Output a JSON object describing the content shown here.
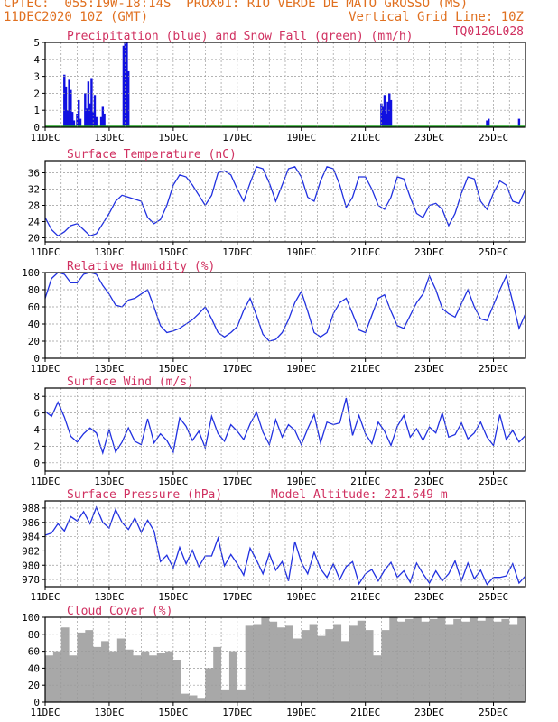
{
  "header": {
    "line1_left": "CPTEC:  055:19W-18:14S  PROX01: RIO VERDE DE MATO GROSSO (MS)",
    "line2_left": "11DEC2020 10Z (GMT)",
    "line2_right": "Vertical Grid Line: 10Z",
    "line3_right": "TQ0126L028"
  },
  "colors": {
    "header": "#e07020",
    "title": "#d03060",
    "precip": "#1010e0",
    "snow": "#20a020",
    "line": "#2030e0",
    "cloud": "#a8a8a8",
    "grid": "#9a9a9a"
  },
  "x_axis": {
    "ticks": [
      "11DEC",
      "13DEC",
      "15DEC",
      "17DEC",
      "19DEC",
      "21DEC",
      "23DEC",
      "25DEC"
    ],
    "range_days": [
      0,
      15
    ]
  },
  "chart_data": [
    {
      "type": "bar",
      "title": "Precipitation (blue) and Snow Fall (green) (mm/h)",
      "ylim": [
        0,
        5
      ],
      "yticks": [
        "0",
        "1",
        "2",
        "3",
        "4",
        "5"
      ],
      "bars": [
        [
          0.6,
          3.1
        ],
        [
          0.65,
          2.4
        ],
        [
          0.7,
          1.0
        ],
        [
          0.75,
          2.8
        ],
        [
          0.8,
          2.2
        ],
        [
          0.85,
          0.9
        ],
        [
          0.9,
          0.4
        ],
        [
          1.0,
          0.8
        ],
        [
          1.05,
          1.6
        ],
        [
          1.1,
          0.5
        ],
        [
          1.25,
          2.0
        ],
        [
          1.3,
          1.1
        ],
        [
          1.35,
          2.7
        ],
        [
          1.4,
          1.4
        ],
        [
          1.45,
          2.9
        ],
        [
          1.5,
          0.9
        ],
        [
          1.55,
          1.9
        ],
        [
          1.6,
          0.6
        ],
        [
          1.75,
          0.6
        ],
        [
          1.8,
          1.2
        ],
        [
          1.85,
          0.8
        ],
        [
          2.45,
          4.8
        ],
        [
          2.5,
          5.0
        ],
        [
          2.55,
          5.0
        ],
        [
          2.6,
          3.3
        ],
        [
          10.5,
          1.4
        ],
        [
          10.55,
          1.2
        ],
        [
          10.6,
          1.9
        ],
        [
          10.65,
          0.8
        ],
        [
          10.7,
          1.5
        ],
        [
          10.75,
          2.0
        ],
        [
          10.8,
          1.6
        ],
        [
          13.8,
          0.4
        ],
        [
          13.85,
          0.5
        ],
        [
          14.8,
          0.5
        ]
      ],
      "snow_line": 0.05
    },
    {
      "type": "line",
      "title": "Surface Temperature (nC)",
      "ylim": [
        19,
        39
      ],
      "yticks": [
        "20",
        "24",
        "28",
        "32",
        "36"
      ],
      "x": [
        0,
        0.2,
        0.4,
        0.6,
        0.8,
        1.0,
        1.2,
        1.4,
        1.6,
        1.8,
        2.0,
        2.2,
        2.4,
        2.6,
        2.8,
        3.0,
        3.2,
        3.4,
        3.6,
        3.8,
        4.0,
        4.2,
        4.4,
        4.6,
        4.8,
        5.0,
        5.2,
        5.4,
        5.6,
        5.8,
        6.0,
        6.2,
        6.4,
        6.6,
        6.8,
        7.0,
        7.2,
        7.4,
        7.6,
        7.8,
        8.0,
        8.2,
        8.4,
        8.6,
        8.8,
        9.0,
        9.2,
        9.4,
        9.6,
        9.8,
        10.0,
        10.2,
        10.4,
        10.6,
        10.8,
        11.0,
        11.2,
        11.4,
        11.6,
        11.8,
        12.0,
        12.2,
        12.4,
        12.6,
        12.8,
        13.0,
        13.2,
        13.4,
        13.6,
        13.8,
        14.0,
        14.2,
        14.4,
        14.6,
        14.8,
        15.0
      ],
      "y": [
        25,
        22,
        20.5,
        21.5,
        23,
        23.5,
        22,
        20.5,
        21,
        23.5,
        26,
        29,
        30.5,
        30,
        29.5,
        29,
        25,
        23.5,
        24.5,
        28,
        33,
        35.5,
        35,
        33,
        30.5,
        28,
        30.5,
        36,
        36.5,
        35.5,
        32,
        29,
        33.5,
        37.5,
        37,
        33.5,
        29,
        33,
        37,
        37.5,
        35,
        30,
        29,
        34,
        37.5,
        37,
        33,
        27.5,
        30,
        35,
        35,
        32,
        28,
        27,
        30,
        35,
        34.5,
        30,
        26,
        25,
        28,
        28.5,
        27,
        23,
        26,
        31,
        35,
        34.5,
        29,
        27,
        31,
        34,
        33,
        29,
        28.5,
        32
      ]
    },
    {
      "type": "line",
      "title": "Relative Humidity (%)",
      "ylim": [
        0,
        100
      ],
      "yticks": [
        "0",
        "20",
        "40",
        "60",
        "80",
        "100"
      ],
      "x": [
        0,
        0.2,
        0.4,
        0.6,
        0.8,
        1.0,
        1.2,
        1.4,
        1.6,
        1.8,
        2.0,
        2.2,
        2.4,
        2.6,
        2.8,
        3.0,
        3.2,
        3.4,
        3.6,
        3.8,
        4.0,
        4.2,
        4.4,
        4.6,
        4.8,
        5.0,
        5.2,
        5.4,
        5.6,
        5.8,
        6.0,
        6.2,
        6.4,
        6.6,
        6.8,
        7.0,
        7.2,
        7.4,
        7.6,
        7.8,
        8.0,
        8.2,
        8.4,
        8.6,
        8.8,
        9.0,
        9.2,
        9.4,
        9.6,
        9.8,
        10.0,
        10.2,
        10.4,
        10.6,
        10.8,
        11.0,
        11.2,
        11.4,
        11.6,
        11.8,
        12.0,
        12.2,
        12.4,
        12.6,
        12.8,
        13.0,
        13.2,
        13.4,
        13.6,
        13.8,
        14.0,
        14.2,
        14.4,
        14.6,
        14.8,
        15.0
      ],
      "y": [
        70,
        93,
        100,
        98,
        88,
        88,
        98,
        100,
        98,
        85,
        75,
        62,
        60,
        68,
        70,
        75,
        80,
        60,
        38,
        30,
        32,
        35,
        40,
        45,
        52,
        60,
        46,
        30,
        25,
        30,
        37,
        56,
        70,
        50,
        28,
        20,
        22,
        30,
        45,
        65,
        78,
        55,
        30,
        25,
        30,
        52,
        65,
        70,
        52,
        33,
        30,
        50,
        70,
        74,
        55,
        38,
        35,
        50,
        65,
        75,
        96,
        80,
        58,
        52,
        48,
        64,
        80,
        60,
        46,
        44,
        62,
        80,
        96,
        66,
        35,
        52
      ]
    },
    {
      "type": "line",
      "title": "Surface Wind (m/s)",
      "ylim": [
        -1,
        9
      ],
      "yticks": [
        "0",
        "2",
        "4",
        "6",
        "8"
      ],
      "x": [
        0,
        0.2,
        0.4,
        0.6,
        0.8,
        1.0,
        1.2,
        1.4,
        1.6,
        1.8,
        2.0,
        2.2,
        2.4,
        2.6,
        2.8,
        3.0,
        3.2,
        3.4,
        3.6,
        3.8,
        4.0,
        4.2,
        4.4,
        4.6,
        4.8,
        5.0,
        5.2,
        5.4,
        5.6,
        5.8,
        6.0,
        6.2,
        6.4,
        6.6,
        6.8,
        7.0,
        7.2,
        7.4,
        7.6,
        7.8,
        8.0,
        8.2,
        8.4,
        8.6,
        8.8,
        9.0,
        9.2,
        9.4,
        9.6,
        9.8,
        10.0,
        10.2,
        10.4,
        10.6,
        10.8,
        11.0,
        11.2,
        11.4,
        11.6,
        11.8,
        12.0,
        12.2,
        12.4,
        12.6,
        12.8,
        13.0,
        13.2,
        13.4,
        13.6,
        13.8,
        14.0,
        14.2,
        14.4,
        14.6,
        14.8,
        15.0
      ],
      "y": [
        6.2,
        5.6,
        7.3,
        5.5,
        3.2,
        2.5,
        3.5,
        4.2,
        3.6,
        1.2,
        4,
        1.3,
        2.5,
        4.2,
        2.6,
        2.2,
        5.3,
        2.4,
        3.5,
        2.7,
        1.3,
        5.4,
        4.4,
        2.7,
        3.8,
        1.8,
        5.6,
        3.5,
        2.6,
        4.6,
        3.8,
        2.8,
        4.7,
        6.1,
        3.7,
        2.2,
        5.2,
        3.1,
        4.6,
        3.9,
        2.2,
        4.1,
        5.8,
        2.4,
        4.9,
        4.6,
        4.8,
        7.8,
        3.3,
        5.7,
        3.5,
        2.3,
        4.9,
        3.8,
        2.1,
        4.4,
        5.7,
        3.1,
        4.1,
        2.7,
        4.3,
        3.6,
        6,
        3.1,
        3.4,
        4.8,
        2.9,
        3.6,
        4.9,
        3.1,
        2.1,
        5.8,
        2.8,
        3.9,
        2.5,
        3.3
      ]
    },
    {
      "type": "line",
      "title": "Surface Pressure (hPa)",
      "annotation": "Model Altitude: 221.649  m",
      "ylim": [
        977,
        989
      ],
      "yticks": [
        "978",
        "980",
        "982",
        "984",
        "986",
        "988"
      ],
      "x": [
        0,
        0.2,
        0.4,
        0.6,
        0.8,
        1.0,
        1.2,
        1.4,
        1.6,
        1.8,
        2.0,
        2.2,
        2.4,
        2.6,
        2.8,
        3.0,
        3.2,
        3.4,
        3.6,
        3.8,
        4.0,
        4.2,
        4.4,
        4.6,
        4.8,
        5.0,
        5.2,
        5.4,
        5.6,
        5.8,
        6.0,
        6.2,
        6.4,
        6.6,
        6.8,
        7.0,
        7.2,
        7.4,
        7.6,
        7.8,
        8.0,
        8.2,
        8.4,
        8.6,
        8.8,
        9.0,
        9.2,
        9.4,
        9.6,
        9.8,
        10.0,
        10.2,
        10.4,
        10.6,
        10.8,
        11.0,
        11.2,
        11.4,
        11.6,
        11.8,
        12.0,
        12.2,
        12.4,
        12.6,
        12.8,
        13.0,
        13.2,
        13.4,
        13.6,
        13.8,
        14.0,
        14.2,
        14.4,
        14.6,
        14.8,
        15.0
      ],
      "y": [
        984.2,
        984.5,
        985.8,
        984.8,
        986.8,
        986.2,
        987.5,
        985.8,
        988.1,
        986,
        985.2,
        987.8,
        986,
        985,
        986.6,
        984.6,
        986.3,
        984.8,
        980.5,
        981.4,
        979.6,
        982.5,
        980.2,
        982.1,
        979.8,
        981.3,
        981.3,
        983.8,
        979.9,
        981.5,
        980.2,
        978.6,
        982.4,
        980.7,
        978.8,
        981.6,
        979.3,
        980.5,
        977.8,
        983.3,
        980.4,
        978.8,
        981.8,
        979.5,
        978.3,
        980.2,
        978,
        979.8,
        980.5,
        977.4,
        978.8,
        979.4,
        977.8,
        979.3,
        980.4,
        978.3,
        979.2,
        977.6,
        980.3,
        978.8,
        977.5,
        979.2,
        977.8,
        978.8,
        980.6,
        977.8,
        980.3,
        978.1,
        979.3,
        977.3,
        978.3,
        978.3,
        978.5,
        980.2,
        977.5,
        978.5
      ]
    },
    {
      "type": "area",
      "title": "Cloud Cover (%)",
      "ylim": [
        0,
        100
      ],
      "yticks": [
        "0",
        "20",
        "40",
        "60",
        "80",
        "100"
      ],
      "x": [
        0,
        0.25,
        0.5,
        0.75,
        1.0,
        1.25,
        1.5,
        1.75,
        2.0,
        2.25,
        2.5,
        2.75,
        3.0,
        3.25,
        3.5,
        3.75,
        4.0,
        4.25,
        4.5,
        4.75,
        5.0,
        5.25,
        5.5,
        5.75,
        6.0,
        6.25,
        6.5,
        6.75,
        7.0,
        7.25,
        7.5,
        7.75,
        8.0,
        8.25,
        8.5,
        8.75,
        9.0,
        9.25,
        9.5,
        9.75,
        10.0,
        10.25,
        10.5,
        10.75,
        11.0,
        11.25,
        11.5,
        11.75,
        12.0,
        12.25,
        12.5,
        12.75,
        13.0,
        13.25,
        13.5,
        13.75,
        14.0,
        14.25,
        14.5,
        14.75,
        15.0
      ],
      "y": [
        55,
        60,
        88,
        55,
        82,
        85,
        65,
        72,
        60,
        75,
        62,
        55,
        60,
        55,
        58,
        60,
        50,
        10,
        8,
        5,
        40,
        65,
        15,
        60,
        15,
        90,
        92,
        100,
        95,
        88,
        90,
        75,
        85,
        92,
        78,
        86,
        92,
        72,
        90,
        96,
        85,
        55,
        85,
        100,
        95,
        98,
        100,
        95,
        98,
        100,
        92,
        98,
        95,
        100,
        96,
        100,
        95,
        98,
        92,
        100,
        96
      ]
    }
  ]
}
